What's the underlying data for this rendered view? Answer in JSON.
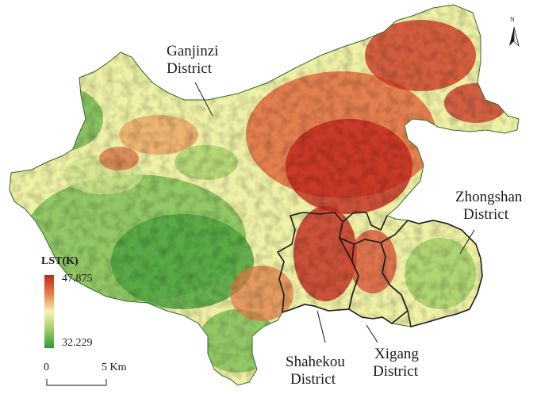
{
  "map": {
    "districts": [
      {
        "id": "ganjinzi",
        "name": "Ganjinzi District",
        "lines": [
          "Ganjinzi",
          "District"
        ]
      },
      {
        "id": "zhongshan",
        "name": "Zhongshan District",
        "lines": [
          "Zhongshan",
          "District"
        ]
      },
      {
        "id": "shahekou",
        "name": "Shahekou District",
        "lines": [
          "Shahekou",
          "District"
        ]
      },
      {
        "id": "xigang",
        "name": "Xigang District",
        "lines": [
          "Xigang",
          "District"
        ]
      }
    ],
    "legend": {
      "title": "LST(K)",
      "max": "47.875",
      "min": "32.229",
      "colors": {
        "high": "#c0281e",
        "mid": "#f7f3b0",
        "low": "#2f9a35"
      }
    },
    "scalebar": {
      "start": "0",
      "end": "5 Km"
    },
    "north": {
      "letter": "N"
    },
    "colors": {
      "border": "#1a1a1a",
      "dark_red": "#b8231a",
      "red": "#d9442b",
      "orange": "#eb9a5a",
      "cream": "#f3eeaa",
      "light_green": "#a9d170",
      "green": "#5aab45",
      "dark_green": "#2f8f34"
    }
  }
}
